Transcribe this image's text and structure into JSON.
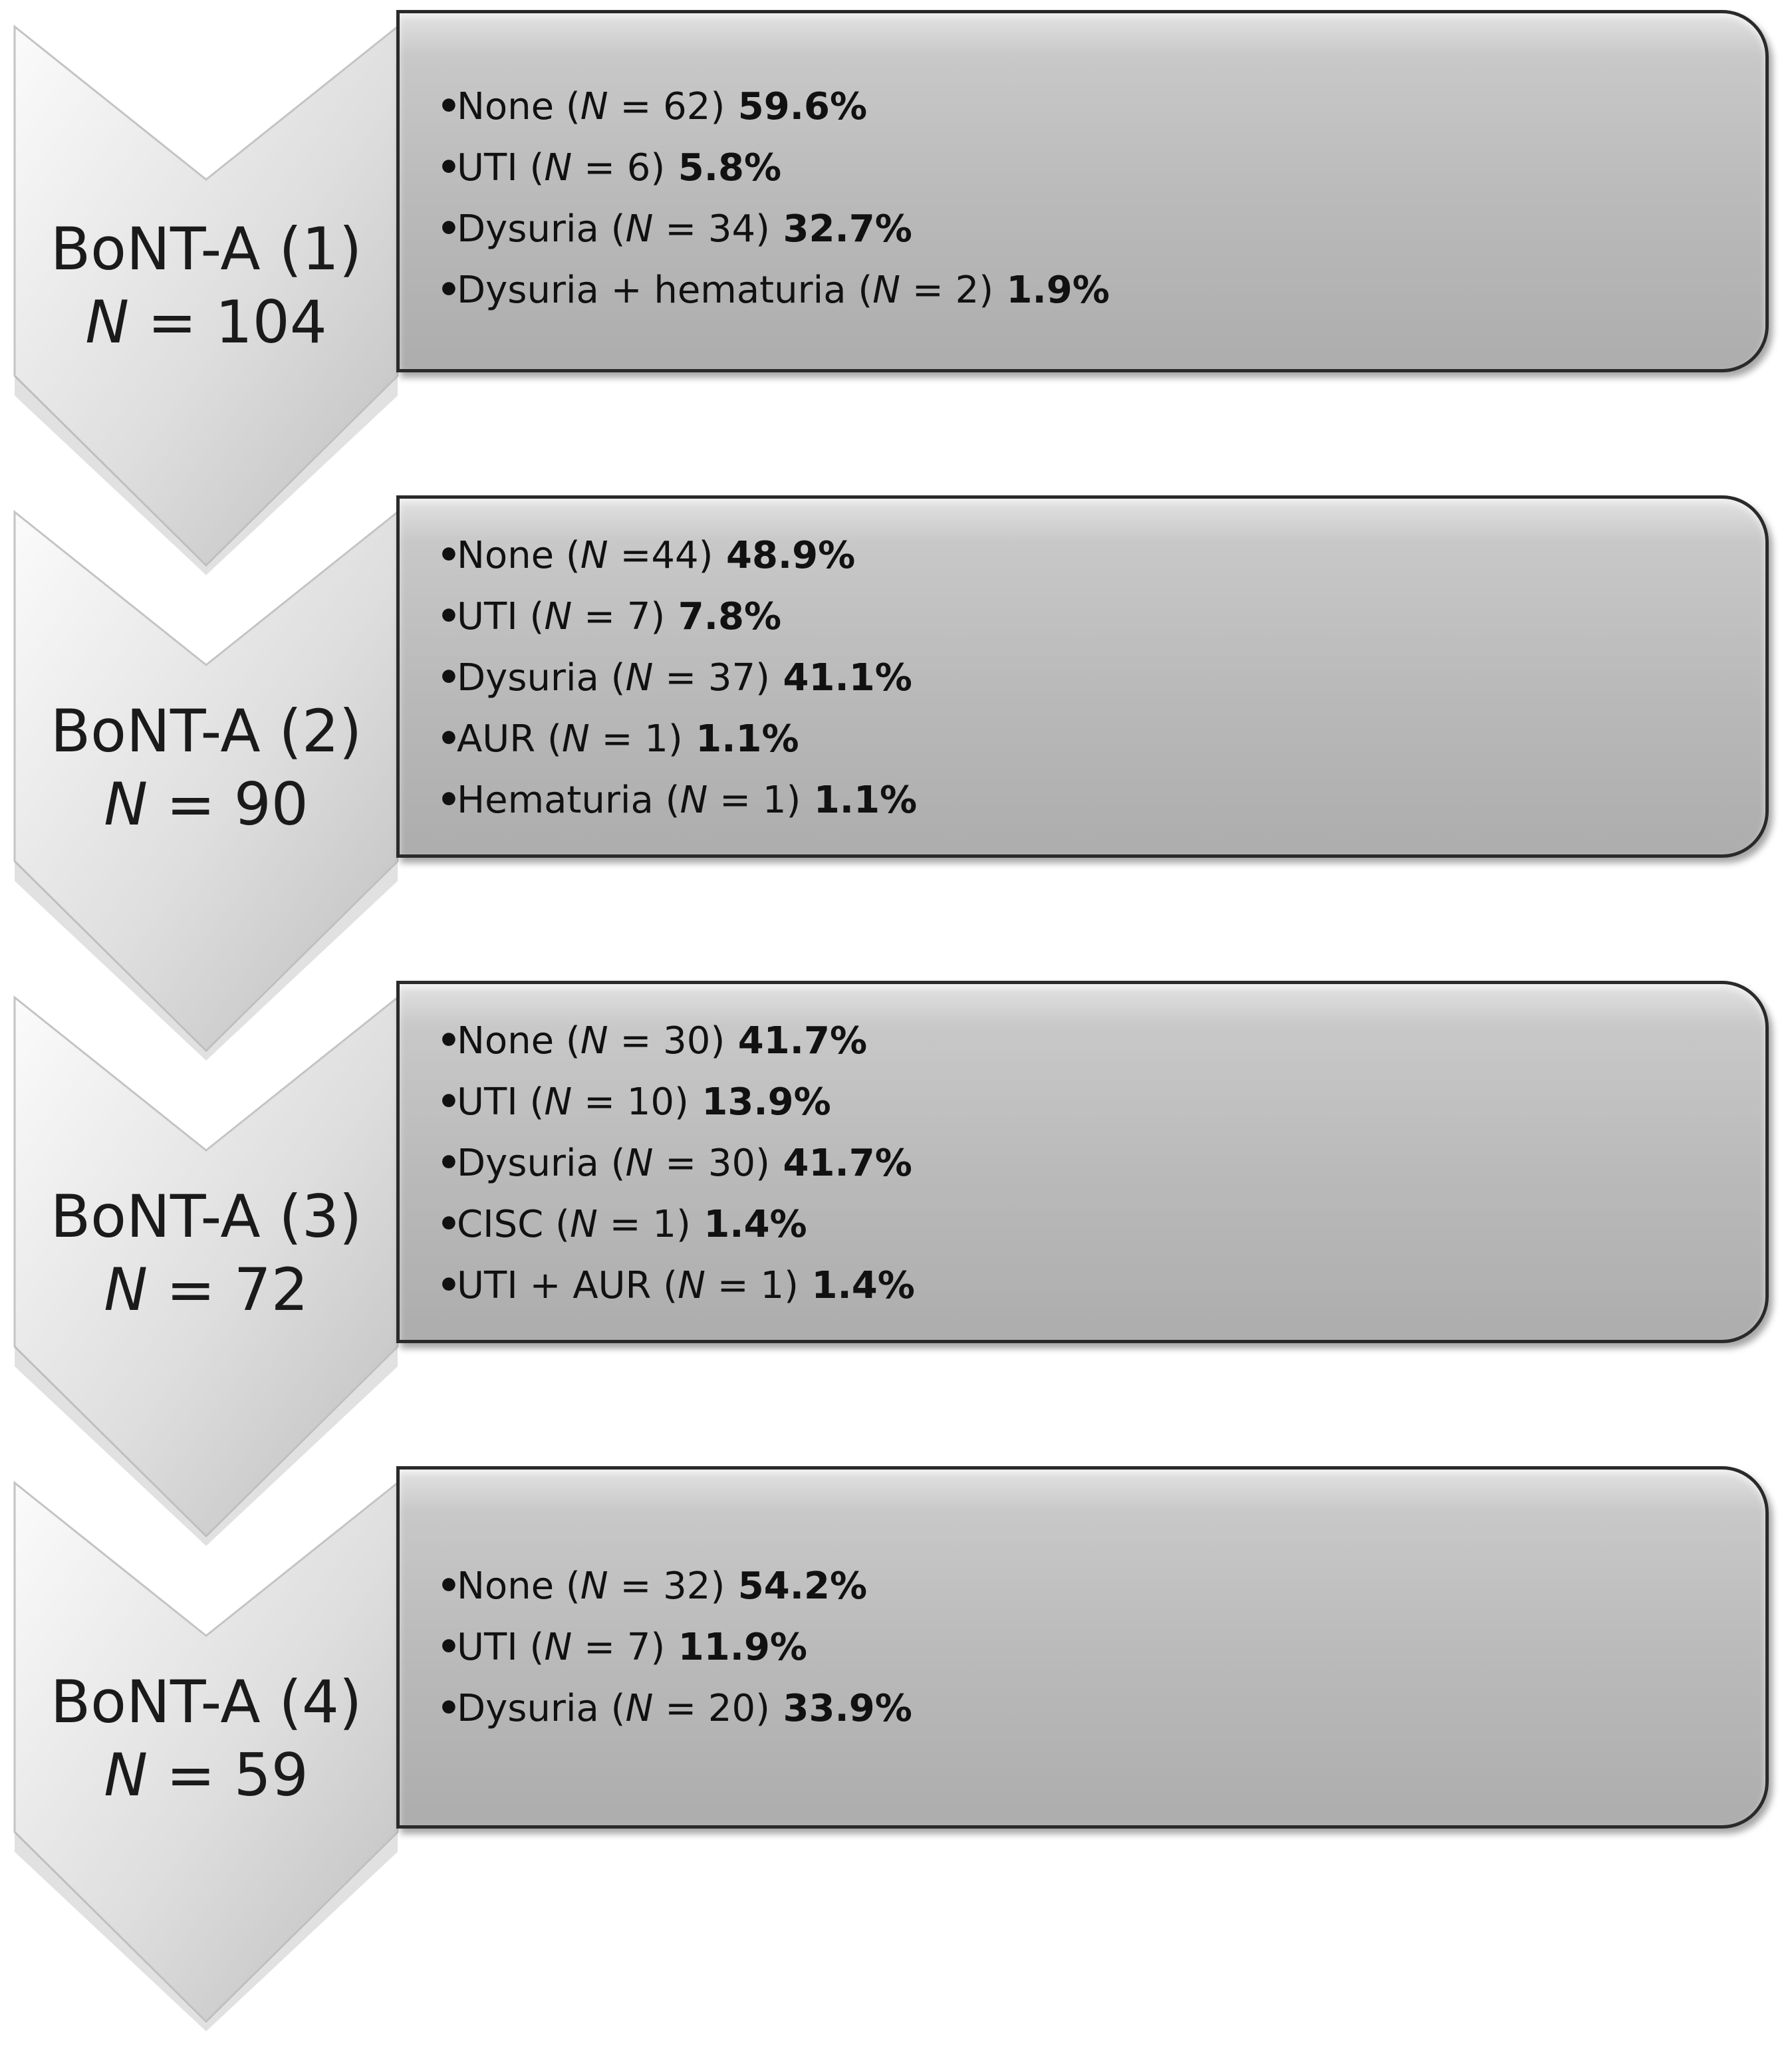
{
  "stages": [
    {
      "title": "BoNT-A (1)",
      "n_var": "N",
      "n_rest": " = 104",
      "items": [
        {
          "label": "None ",
          "n_open": "(",
          "n_var": "N",
          "n_rest": " = 62)",
          "pct": " 59.6%"
        },
        {
          "label": "UTI ",
          "n_open": "(",
          "n_var": "N",
          "n_rest": " = 6)",
          "pct": " 5.8%"
        },
        {
          "label": "Dysuria ",
          "n_open": "(",
          "n_var": "N",
          "n_rest": " = 34)",
          "pct": " 32.7%"
        },
        {
          "label": "Dysuria + hematuria ",
          "n_open": "(",
          "n_var": "N",
          "n_rest": " = 2)",
          "pct": " 1.9%"
        }
      ]
    },
    {
      "title": "BoNT-A (2)",
      "n_var": "N",
      "n_rest": " = 90",
      "items": [
        {
          "label": "None ",
          "n_open": "(",
          "n_var": "N",
          "n_rest": " =44)",
          "pct": " 48.9%"
        },
        {
          "label": "UTI ",
          "n_open": "(",
          "n_var": "N",
          "n_rest": " = 7)",
          "pct": " 7.8%"
        },
        {
          "label": "Dysuria ",
          "n_open": "(",
          "n_var": "N",
          "n_rest": " = 37)",
          "pct": " 41.1%"
        },
        {
          "label": "AUR ",
          "n_open": "(",
          "n_var": "N",
          "n_rest": " = 1)",
          "pct": " 1.1%"
        },
        {
          "label": "Hematuria ",
          "n_open": "(",
          "n_var": "N",
          "n_rest": " = 1)",
          "pct": " 1.1%"
        }
      ]
    },
    {
      "title": "BoNT-A (3)",
      "n_var": "N",
      "n_rest": " = 72",
      "items": [
        {
          "label": "None ",
          "n_open": "(",
          "n_var": "N",
          "n_rest": " = 30)",
          "pct": " 41.7%"
        },
        {
          "label": "UTI ",
          "n_open": "(",
          "n_var": "N",
          "n_rest": " = 10)",
          "pct": " 13.9%"
        },
        {
          "label": "Dysuria ",
          "n_open": "(",
          "n_var": "N",
          "n_rest": " = 30)",
          "pct": " 41.7%"
        },
        {
          "label": "CISC ",
          "n_open": "(",
          "n_var": "N",
          "n_rest": " = 1)",
          "pct": " 1.4%"
        },
        {
          "label": "UTI + AUR ",
          "n_open": "(",
          "n_var": "N",
          "n_rest": " = 1)",
          "pct": " 1.4%"
        }
      ]
    },
    {
      "title": "BoNT-A (4)",
      "n_var": "N",
      "n_rest": " = 59",
      "items": [
        {
          "label": "None ",
          "n_open": "(",
          "n_var": "N",
          "n_rest": " = 32)",
          "pct": " 54.2%"
        },
        {
          "label": "UTI ",
          "n_open": "(",
          "n_var": "N",
          "n_rest": " = 7)",
          "pct": " 11.9%"
        },
        {
          "label": "Dysuria ",
          "n_open": "(",
          "n_var": "N",
          "n_rest": " = 20)",
          "pct": " 33.9%"
        }
      ]
    }
  ],
  "bullet": "•",
  "colors": {
    "chevron_light": "#f4f4f4",
    "chevron_mid": "#dcdcdc",
    "chevron_dark": "#b8b8b8",
    "box_fill": "#bdbdbd",
    "box_border": "#2a2a2a",
    "text": "#111111"
  }
}
